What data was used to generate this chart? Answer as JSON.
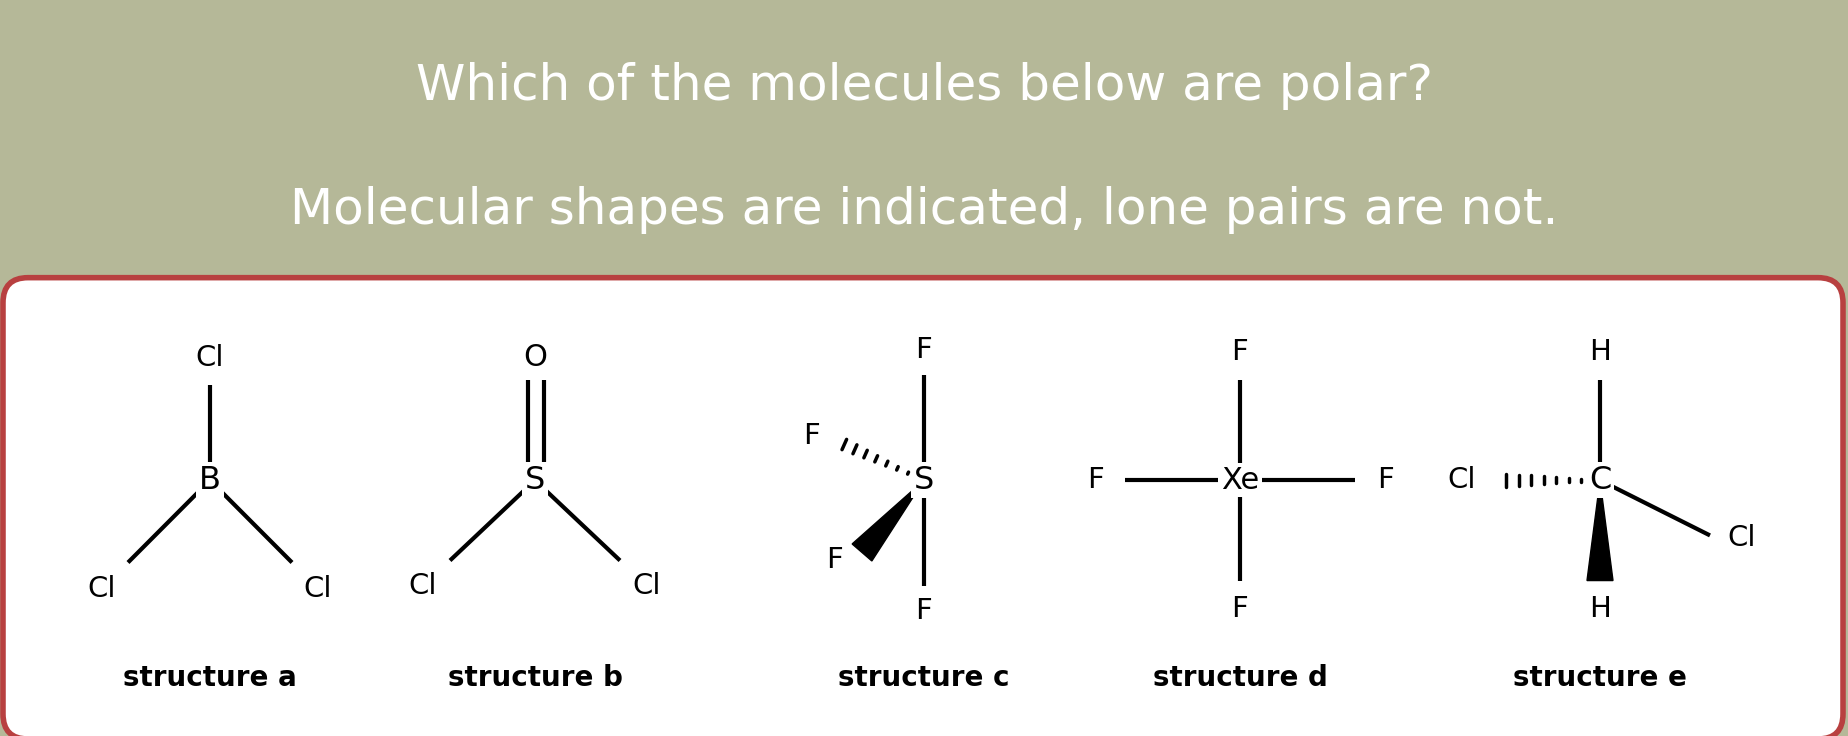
{
  "title_line1": "Which of the molecules below are polar?",
  "title_line2": "Molecular shapes are indicated, lone pairs are not.",
  "title_bg": "#605555",
  "title_text_color": "#ffffff",
  "bottom_bg": "#b5b898",
  "box_bg": "#ffffff",
  "box_edge_color": "#b84040",
  "structure_labels": [
    "structure a",
    "structure b",
    "structure c",
    "structure d",
    "structure e"
  ],
  "font_size_title": 36,
  "font_size_label": 20,
  "font_size_atom": 22
}
